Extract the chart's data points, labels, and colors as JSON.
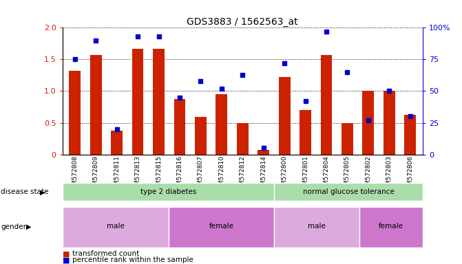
{
  "title": "GDS3883 / 1562563_at",
  "samples": [
    "GSM572808",
    "GSM572809",
    "GSM572811",
    "GSM572813",
    "GSM572815",
    "GSM572816",
    "GSM572807",
    "GSM572810",
    "GSM572812",
    "GSM572814",
    "GSM572800",
    "GSM572801",
    "GSM572804",
    "GSM572805",
    "GSM572802",
    "GSM572803",
    "GSM572806"
  ],
  "bar_values": [
    1.32,
    1.57,
    0.38,
    1.67,
    1.67,
    0.88,
    0.59,
    0.95,
    0.49,
    0.07,
    1.22,
    0.7,
    1.57,
    0.49,
    1.01,
    1.01,
    0.63
  ],
  "dot_values": [
    75,
    90,
    20,
    93,
    93,
    45,
    58,
    52,
    63,
    5,
    72,
    42,
    97,
    65,
    27,
    50,
    30
  ],
  "ylim_left": [
    0,
    2
  ],
  "ylim_right": [
    0,
    100
  ],
  "yticks_left": [
    0,
    0.5,
    1.0,
    1.5,
    2.0
  ],
  "yticks_right": [
    0,
    25,
    50,
    75,
    100
  ],
  "bar_color": "#cc2200",
  "dot_color": "#0000cc",
  "disease_state": [
    {
      "label": "type 2 diabetes",
      "start": 0,
      "end": 10,
      "color": "#aaddaa"
    },
    {
      "label": "normal glucose tolerance",
      "start": 10,
      "end": 17,
      "color": "#aaddaa"
    }
  ],
  "gender": [
    {
      "label": "male",
      "start": 0,
      "end": 5,
      "color": "#ddaadd"
    },
    {
      "label": "female",
      "start": 5,
      "end": 10,
      "color": "#cc77cc"
    },
    {
      "label": "male",
      "start": 10,
      "end": 14,
      "color": "#ddaadd"
    },
    {
      "label": "female",
      "start": 14,
      "end": 17,
      "color": "#cc77cc"
    }
  ],
  "legend_items": [
    {
      "label": "transformed count",
      "color": "#cc2200"
    },
    {
      "label": "percentile rank within the sample",
      "color": "#0000cc"
    }
  ],
  "background_color": "#ffffff",
  "row_label_disease": "disease state",
  "row_label_gender": "gender"
}
